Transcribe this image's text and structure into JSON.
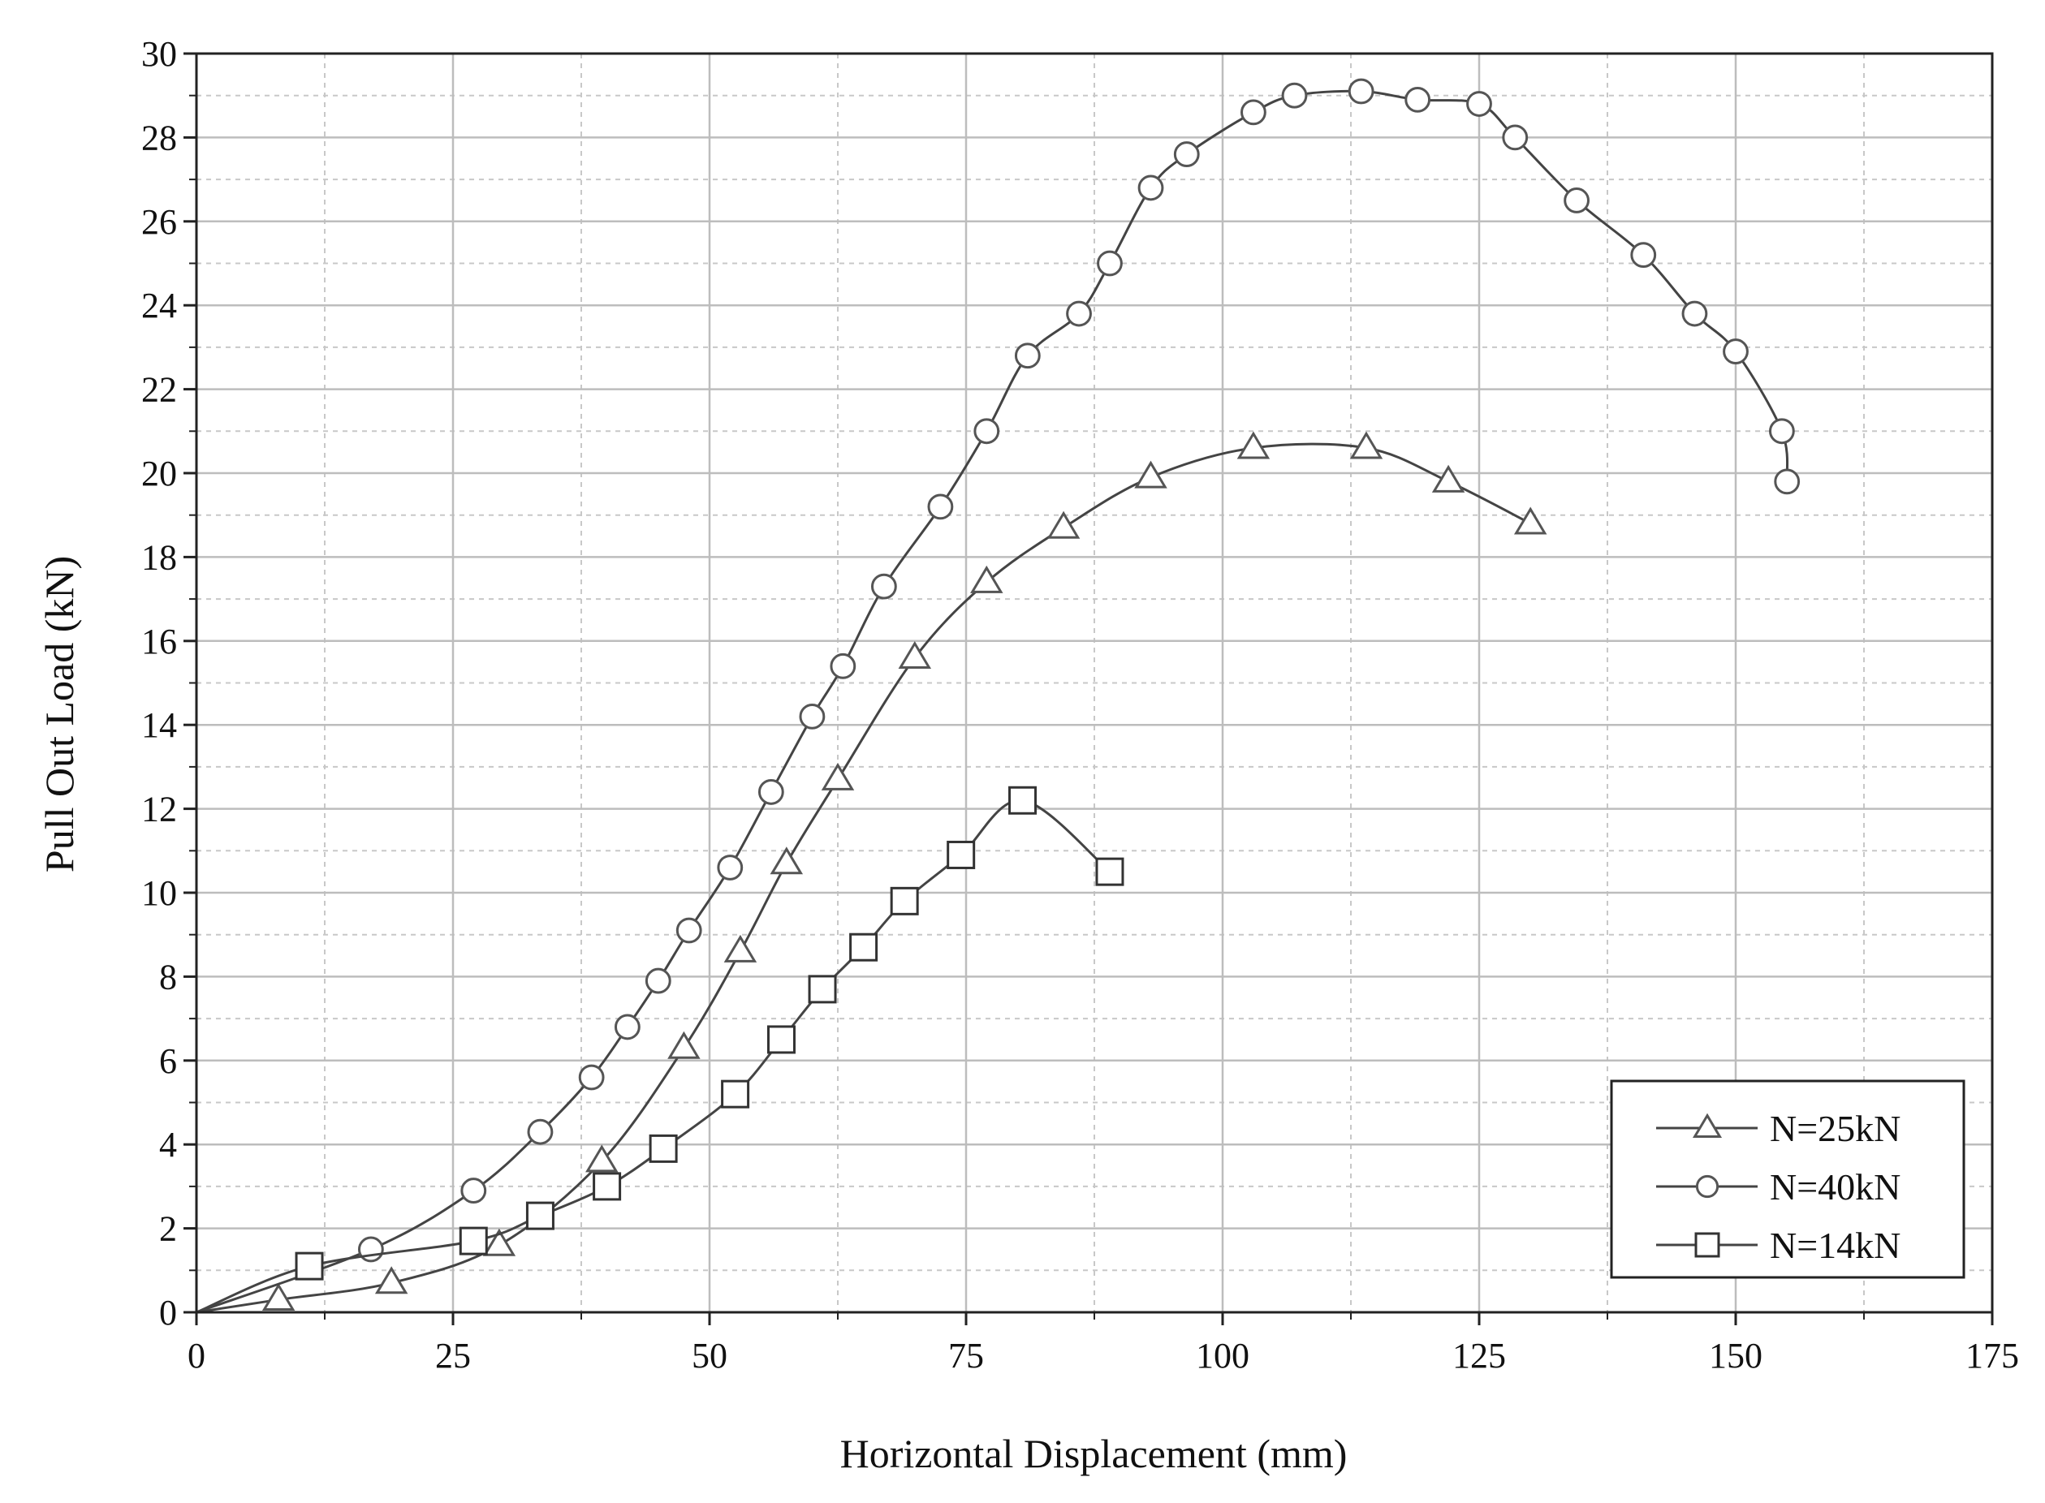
{
  "chart_data": {
    "type": "line",
    "title": "",
    "xlabel": "Horizontal Displacement (mm)",
    "ylabel": "Pull Out Load (kN)",
    "xlim": [
      0,
      175
    ],
    "ylim": [
      0,
      30
    ],
    "xticks": [
      0,
      25,
      50,
      75,
      100,
      125,
      150,
      175
    ],
    "yticks": [
      0,
      2,
      4,
      6,
      8,
      10,
      12,
      14,
      16,
      18,
      20,
      22,
      24,
      26,
      28,
      30
    ],
    "x_minor_step": 12.5,
    "y_minor_step": 1,
    "grid": true,
    "legend_position": "bottom-right",
    "series": [
      {
        "name": "N=25kN",
        "marker": "triangle",
        "points": [
          [
            0,
            0
          ],
          [
            8,
            0.3
          ],
          [
            19,
            0.7
          ],
          [
            29.5,
            1.6
          ],
          [
            39.5,
            3.6
          ],
          [
            47.5,
            6.3
          ],
          [
            53,
            8.6
          ],
          [
            57.5,
            10.7
          ],
          [
            62.5,
            12.7
          ],
          [
            70,
            15.6
          ],
          [
            77,
            17.4
          ],
          [
            84.5,
            18.7
          ],
          [
            93,
            19.9
          ],
          [
            103,
            20.6
          ],
          [
            114,
            20.6
          ],
          [
            122,
            19.8
          ],
          [
            130,
            18.8
          ]
        ]
      },
      {
        "name": "N=40kN",
        "marker": "circle",
        "points": [
          [
            0,
            0
          ],
          [
            17,
            1.5
          ],
          [
            27,
            2.9
          ],
          [
            33.5,
            4.3
          ],
          [
            38.5,
            5.6
          ],
          [
            42,
            6.8
          ],
          [
            45,
            7.9
          ],
          [
            48,
            9.1
          ],
          [
            52,
            10.6
          ],
          [
            56,
            12.4
          ],
          [
            60,
            14.2
          ],
          [
            63,
            15.4
          ],
          [
            67,
            17.3
          ],
          [
            72.5,
            19.2
          ],
          [
            77,
            21
          ],
          [
            81,
            22.8
          ],
          [
            86,
            23.8
          ],
          [
            89,
            25
          ],
          [
            93,
            26.8
          ],
          [
            96.5,
            27.6
          ],
          [
            103,
            28.6
          ],
          [
            107,
            29
          ],
          [
            113.5,
            29.1
          ],
          [
            119,
            28.9
          ],
          [
            125,
            28.8
          ],
          [
            128.5,
            28
          ],
          [
            134.5,
            26.5
          ],
          [
            141,
            25.2
          ],
          [
            146,
            23.8
          ],
          [
            150,
            22.9
          ],
          [
            154.5,
            21
          ],
          [
            155,
            19.8
          ]
        ]
      },
      {
        "name": "N=14kN",
        "marker": "square",
        "points": [
          [
            0,
            0
          ],
          [
            11,
            1.1
          ],
          [
            27,
            1.7
          ],
          [
            33.5,
            2.3
          ],
          [
            40,
            3
          ],
          [
            45.5,
            3.9
          ],
          [
            52.5,
            5.2
          ],
          [
            57,
            6.5
          ],
          [
            61,
            7.7
          ],
          [
            65,
            8.7
          ],
          [
            69,
            9.8
          ],
          [
            74.5,
            10.9
          ],
          [
            80.5,
            12.2
          ],
          [
            89,
            10.5
          ]
        ]
      }
    ]
  }
}
